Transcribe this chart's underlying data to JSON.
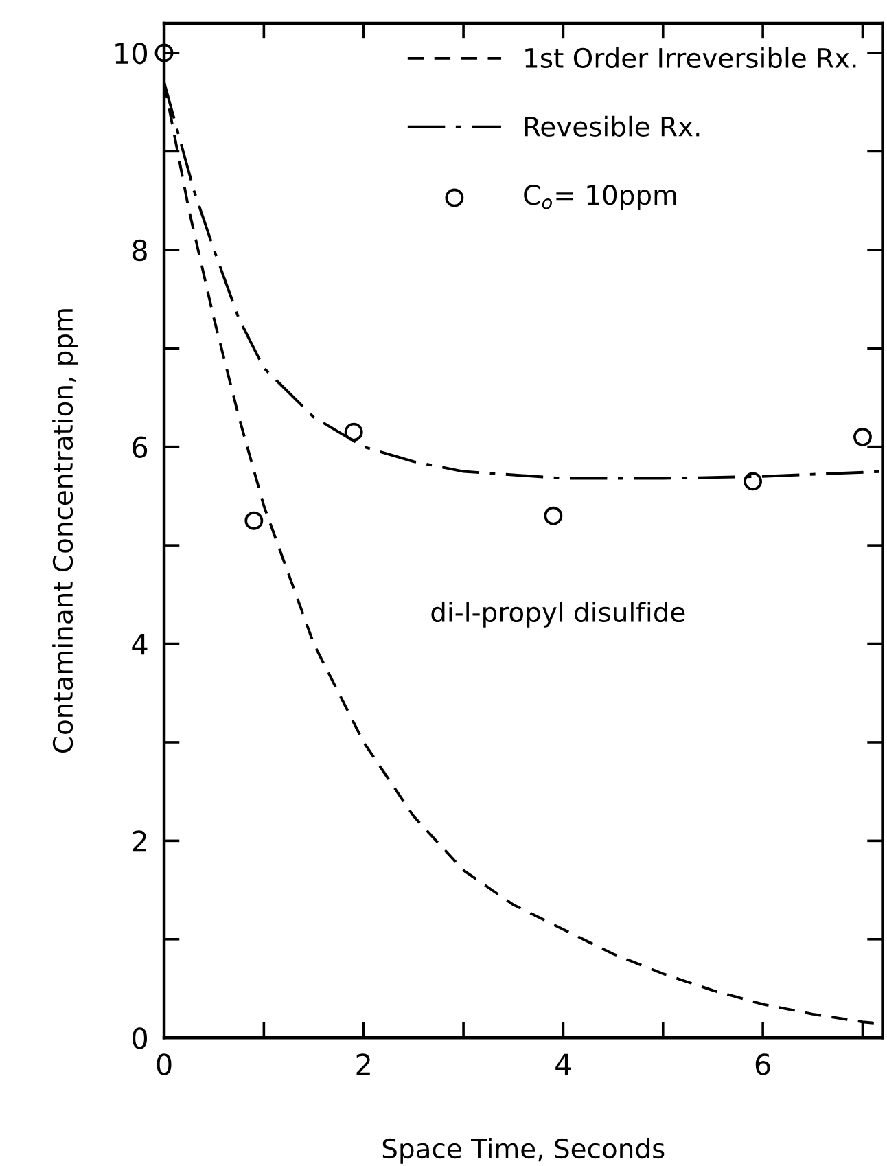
{
  "chart_data": {
    "type": "line",
    "xlabel": "Space Time, Seconds",
    "ylabel": "Contaminant Concentration, ppm",
    "annotations": [
      "di-l-propyl disulfide"
    ],
    "series": [
      {
        "name": "1st Order Irreversible Rx.",
        "color": "#000000",
        "line_style": "dashed",
        "marker": "none",
        "x": [
          0,
          0.25,
          0.5,
          0.75,
          1,
          1.5,
          2,
          2.5,
          3,
          3.5,
          4,
          4.5,
          5,
          5.5,
          6,
          6.5,
          7,
          7.2
        ],
        "values": [
          9.7,
          8.4,
          7.3,
          6.3,
          5.4,
          4.0,
          3.0,
          2.25,
          1.7,
          1.35,
          1.1,
          0.85,
          0.65,
          0.48,
          0.34,
          0.24,
          0.16,
          0.14
        ]
      },
      {
        "name": "Revesible Rx.",
        "color": "#000000",
        "line_style": "dashdot",
        "marker": "none",
        "x": [
          0,
          0.3,
          0.5,
          0.75,
          1,
          1.5,
          2,
          2.5,
          3,
          4,
          5,
          6,
          7.2
        ],
        "values": [
          9.7,
          8.6,
          8.0,
          7.3,
          6.8,
          6.3,
          6.0,
          5.85,
          5.75,
          5.68,
          5.68,
          5.7,
          5.75
        ]
      },
      {
        "name": "C$_{o}$= 10ppm",
        "type": "scatter",
        "color": "#000000",
        "marker": "circle",
        "x": [
          0,
          0.9,
          1.9,
          3.9,
          5.9,
          7.0
        ],
        "values": [
          10,
          5.25,
          6.15,
          5.3,
          5.65,
          6.1
        ]
      }
    ],
    "xlim": [
      0,
      7.2
    ],
    "ylim": [
      0,
      10.3
    ],
    "xticks": [
      0,
      {
        "value": 1,
        "label": null
      },
      2,
      {
        "value": 3,
        "label": null
      },
      4,
      {
        "value": 5,
        "label": null
      },
      6,
      {
        "value": 7,
        "label": null
      }
    ],
    "yticks": [
      0,
      {
        "value": 1,
        "label": null
      },
      2,
      {
        "value": 3,
        "label": null
      },
      4,
      {
        "value": 5,
        "label": null
      },
      6,
      {
        "value": 7,
        "label": null
      },
      8,
      {
        "value": 9,
        "label": null
      },
      10
    ],
    "legend": "top right",
    "grid": false
  }
}
